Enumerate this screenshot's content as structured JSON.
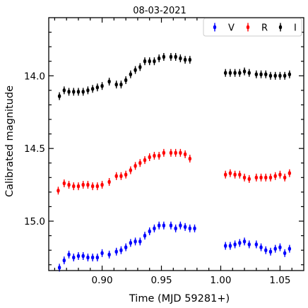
{
  "chart_data": {
    "type": "scatter",
    "title": "08-03-2021",
    "xlabel": "Time (MJD 59281+)",
    "ylabel": "Calibrated magnitude",
    "xlim": [
      0.855,
      1.07
    ],
    "ylim": [
      15.34,
      13.6
    ],
    "y_inverted": true,
    "x_ticks": [
      0.9,
      0.95,
      1.0,
      1.05
    ],
    "x_tick_labels": [
      "0.90",
      "0.95",
      "1.00",
      "1.05"
    ],
    "y_ticks": [
      14.0,
      14.5,
      15.0
    ],
    "y_tick_labels": [
      "14.0",
      "14.5",
      "15.0"
    ],
    "legend_position": "top-right",
    "grid": false,
    "series": [
      {
        "name": "V",
        "color": "#0000ff",
        "points": [
          [
            0.864,
            15.32
          ],
          [
            0.868,
            15.27
          ],
          [
            0.872,
            15.23
          ],
          [
            0.876,
            15.25
          ],
          [
            0.88,
            15.24
          ],
          [
            0.884,
            15.24
          ],
          [
            0.888,
            15.25
          ],
          [
            0.892,
            15.25
          ],
          [
            0.896,
            15.25
          ],
          [
            0.9,
            15.22
          ],
          [
            0.906,
            15.23
          ],
          [
            0.912,
            15.21
          ],
          [
            0.916,
            15.2
          ],
          [
            0.92,
            15.18
          ],
          [
            0.924,
            15.15
          ],
          [
            0.928,
            15.14
          ],
          [
            0.932,
            15.14
          ],
          [
            0.936,
            15.1
          ],
          [
            0.94,
            15.07
          ],
          [
            0.944,
            15.05
          ],
          [
            0.948,
            15.03
          ],
          [
            0.952,
            15.03
          ],
          [
            0.958,
            15.03
          ],
          [
            0.962,
            15.05
          ],
          [
            0.966,
            15.03
          ],
          [
            0.97,
            15.04
          ],
          [
            0.974,
            15.05
          ],
          [
            0.978,
            15.05
          ],
          [
            1.004,
            15.17
          ],
          [
            1.008,
            15.17
          ],
          [
            1.012,
            15.16
          ],
          [
            1.016,
            15.15
          ],
          [
            1.02,
            15.14
          ],
          [
            1.024,
            15.16
          ],
          [
            1.03,
            15.16
          ],
          [
            1.034,
            15.18
          ],
          [
            1.038,
            15.2
          ],
          [
            1.042,
            15.21
          ],
          [
            1.046,
            15.19
          ],
          [
            1.05,
            15.18
          ],
          [
            1.054,
            15.22
          ],
          [
            1.058,
            15.19
          ]
        ]
      },
      {
        "name": "R",
        "color": "#ff0000",
        "points": [
          [
            0.863,
            14.79
          ],
          [
            0.868,
            14.74
          ],
          [
            0.872,
            14.75
          ],
          [
            0.876,
            14.76
          ],
          [
            0.88,
            14.76
          ],
          [
            0.884,
            14.75
          ],
          [
            0.888,
            14.75
          ],
          [
            0.892,
            14.76
          ],
          [
            0.896,
            14.76
          ],
          [
            0.9,
            14.75
          ],
          [
            0.906,
            14.73
          ],
          [
            0.912,
            14.69
          ],
          [
            0.916,
            14.69
          ],
          [
            0.92,
            14.68
          ],
          [
            0.924,
            14.65
          ],
          [
            0.928,
            14.62
          ],
          [
            0.932,
            14.6
          ],
          [
            0.936,
            14.58
          ],
          [
            0.94,
            14.56
          ],
          [
            0.944,
            14.55
          ],
          [
            0.948,
            14.55
          ],
          [
            0.952,
            14.53
          ],
          [
            0.958,
            14.53
          ],
          [
            0.962,
            14.53
          ],
          [
            0.966,
            14.53
          ],
          [
            0.97,
            14.54
          ],
          [
            0.974,
            14.57
          ],
          [
            1.004,
            14.68
          ],
          [
            1.008,
            14.67
          ],
          [
            1.012,
            14.68
          ],
          [
            1.016,
            14.68
          ],
          [
            1.02,
            14.7
          ],
          [
            1.024,
            14.71
          ],
          [
            1.03,
            14.7
          ],
          [
            1.034,
            14.7
          ],
          [
            1.038,
            14.7
          ],
          [
            1.042,
            14.7
          ],
          [
            1.046,
            14.69
          ],
          [
            1.05,
            14.68
          ],
          [
            1.054,
            14.7
          ],
          [
            1.058,
            14.67
          ]
        ]
      },
      {
        "name": "I",
        "color": "#000000",
        "points": [
          [
            0.864,
            14.14
          ],
          [
            0.868,
            14.1
          ],
          [
            0.872,
            14.11
          ],
          [
            0.876,
            14.11
          ],
          [
            0.88,
            14.11
          ],
          [
            0.884,
            14.11
          ],
          [
            0.888,
            14.1
          ],
          [
            0.892,
            14.09
          ],
          [
            0.896,
            14.08
          ],
          [
            0.9,
            14.07
          ],
          [
            0.906,
            14.04
          ],
          [
            0.912,
            14.06
          ],
          [
            0.916,
            14.06
          ],
          [
            0.92,
            14.03
          ],
          [
            0.924,
            13.99
          ],
          [
            0.928,
            13.96
          ],
          [
            0.932,
            13.94
          ],
          [
            0.936,
            13.9
          ],
          [
            0.94,
            13.9
          ],
          [
            0.944,
            13.9
          ],
          [
            0.948,
            13.88
          ],
          [
            0.952,
            13.87
          ],
          [
            0.958,
            13.87
          ],
          [
            0.962,
            13.87
          ],
          [
            0.966,
            13.88
          ],
          [
            0.97,
            13.89
          ],
          [
            0.974,
            13.89
          ],
          [
            1.004,
            13.98
          ],
          [
            1.008,
            13.98
          ],
          [
            1.012,
            13.98
          ],
          [
            1.016,
            13.98
          ],
          [
            1.02,
            13.97
          ],
          [
            1.024,
            13.98
          ],
          [
            1.03,
            13.99
          ],
          [
            1.034,
            13.99
          ],
          [
            1.038,
            13.99
          ],
          [
            1.042,
            14.0
          ],
          [
            1.046,
            14.0
          ],
          [
            1.05,
            14.0
          ],
          [
            1.054,
            14.0
          ],
          [
            1.058,
            13.99
          ]
        ]
      }
    ]
  }
}
